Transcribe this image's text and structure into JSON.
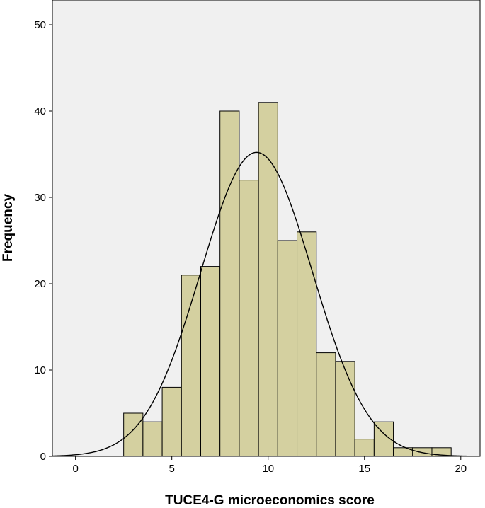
{
  "chart_data": {
    "type": "bar",
    "subtype": "histogram",
    "xlabel": "TUCE4-G microeconomics score",
    "ylabel": "Frequency",
    "xlim": [
      -1.2,
      21
    ],
    "ylim": [
      0,
      50
    ],
    "x_ticks": [
      0,
      5,
      10,
      15,
      20
    ],
    "y_ticks": [
      0,
      10,
      20,
      30,
      40,
      50
    ],
    "bin_width": 1,
    "bins": [
      {
        "start": 2.5,
        "end": 3.5,
        "count": 5
      },
      {
        "start": 3.5,
        "end": 4.5,
        "count": 4
      },
      {
        "start": 4.5,
        "end": 5.5,
        "count": 8
      },
      {
        "start": 5.5,
        "end": 6.5,
        "count": 21
      },
      {
        "start": 6.5,
        "end": 7.5,
        "count": 22
      },
      {
        "start": 7.5,
        "end": 8.5,
        "count": 40
      },
      {
        "start": 8.5,
        "end": 9.5,
        "count": 32
      },
      {
        "start": 9.5,
        "end": 10.5,
        "count": 41
      },
      {
        "start": 10.5,
        "end": 11.5,
        "count": 25
      },
      {
        "start": 11.5,
        "end": 12.5,
        "count": 26
      },
      {
        "start": 12.5,
        "end": 13.5,
        "count": 12
      },
      {
        "start": 13.5,
        "end": 14.5,
        "count": 11
      },
      {
        "start": 14.5,
        "end": 15.5,
        "count": 2
      },
      {
        "start": 15.5,
        "end": 16.5,
        "count": 4
      },
      {
        "start": 16.5,
        "end": 17.5,
        "count": 1
      },
      {
        "start": 17.5,
        "end": 18.5,
        "count": 1
      },
      {
        "start": 18.5,
        "end": 19.5,
        "count": 1
      }
    ],
    "normal_curve": {
      "mean": 9.4,
      "sd": 2.9,
      "n": 256
    },
    "grid": false,
    "colors": {
      "plot_background": "#f0f0f0",
      "bar_fill": "#d4d0a0",
      "bar_stroke": "#000000",
      "curve": "#000000"
    }
  }
}
